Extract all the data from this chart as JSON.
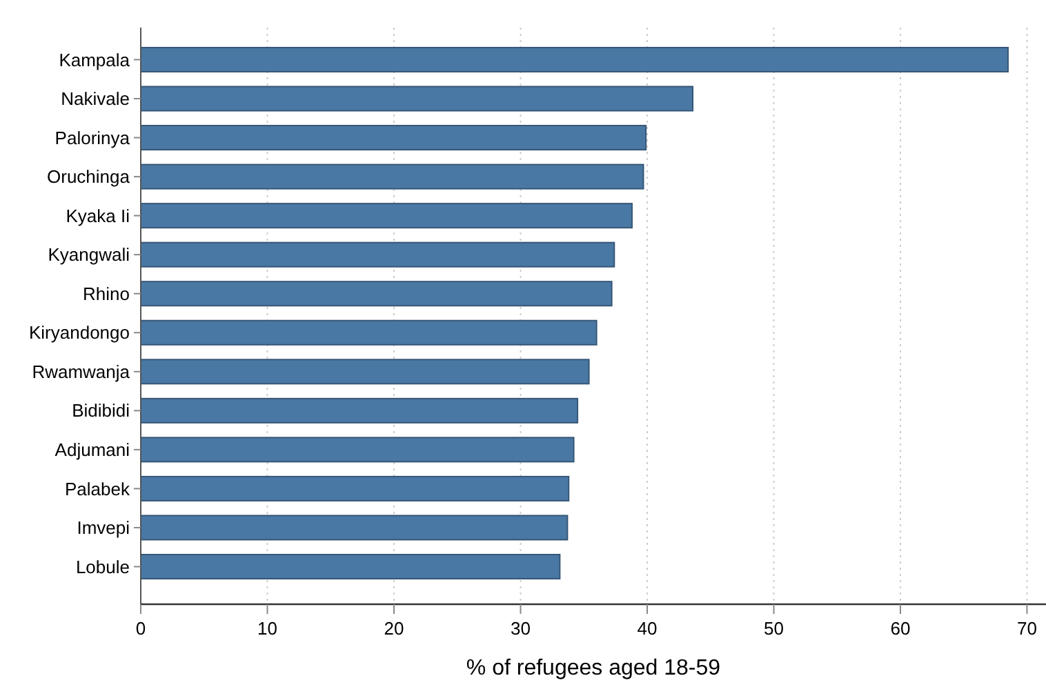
{
  "chart_data": {
    "type": "bar",
    "orientation": "horizontal",
    "xlabel": "% of refugees aged 18-59",
    "categories": [
      "Kampala",
      "Nakivale",
      "Palorinya",
      "Oruchinga",
      "Kyaka Ii",
      "Kyangwali",
      "Rhino",
      "Kiryandongo",
      "Rwamwanja",
      "Bidibidi",
      "Adjumani",
      "Palabek",
      "Imvepi",
      "Lobule"
    ],
    "values": [
      68.5,
      43.6,
      39.9,
      39.7,
      38.8,
      37.4,
      37.2,
      36.0,
      35.4,
      34.5,
      34.2,
      33.8,
      33.7,
      33.1
    ],
    "color": "#4a78a4",
    "xlim": [
      0,
      71.5
    ],
    "xticks": [
      0,
      10,
      20,
      30,
      40,
      50,
      60,
      70
    ],
    "grid": "x"
  }
}
